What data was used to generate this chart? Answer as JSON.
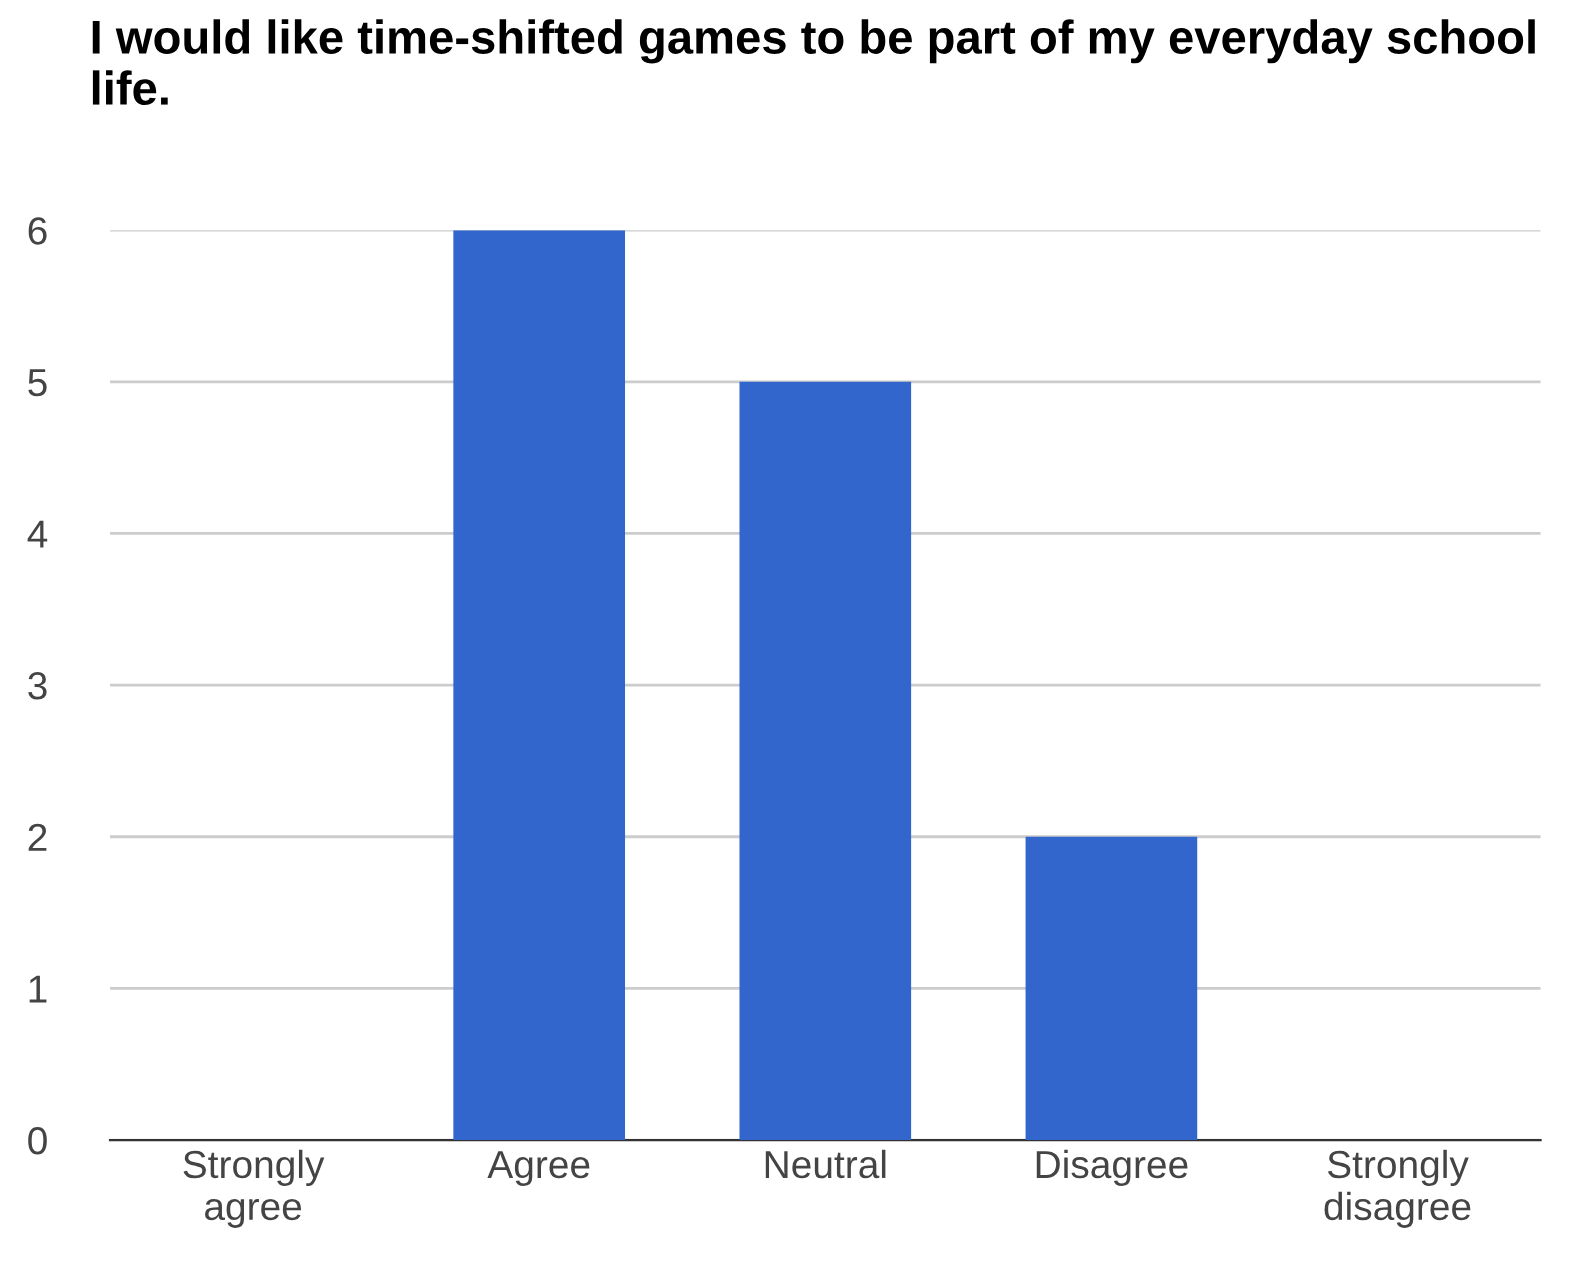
{
  "chart_data": {
    "type": "bar",
    "title": "I would like time-shifted games to be part of my everyday school life.",
    "categories": [
      "Strongly agree",
      "Agree",
      "Neutral",
      "Disagree",
      "Strongly disagree"
    ],
    "values": [
      0,
      6,
      5,
      2,
      0
    ],
    "color": "#3366cc",
    "ylim": [
      0,
      6
    ],
    "yticks": [
      0,
      1,
      2,
      3,
      4,
      5,
      6
    ],
    "grid": "y",
    "legend": false
  }
}
